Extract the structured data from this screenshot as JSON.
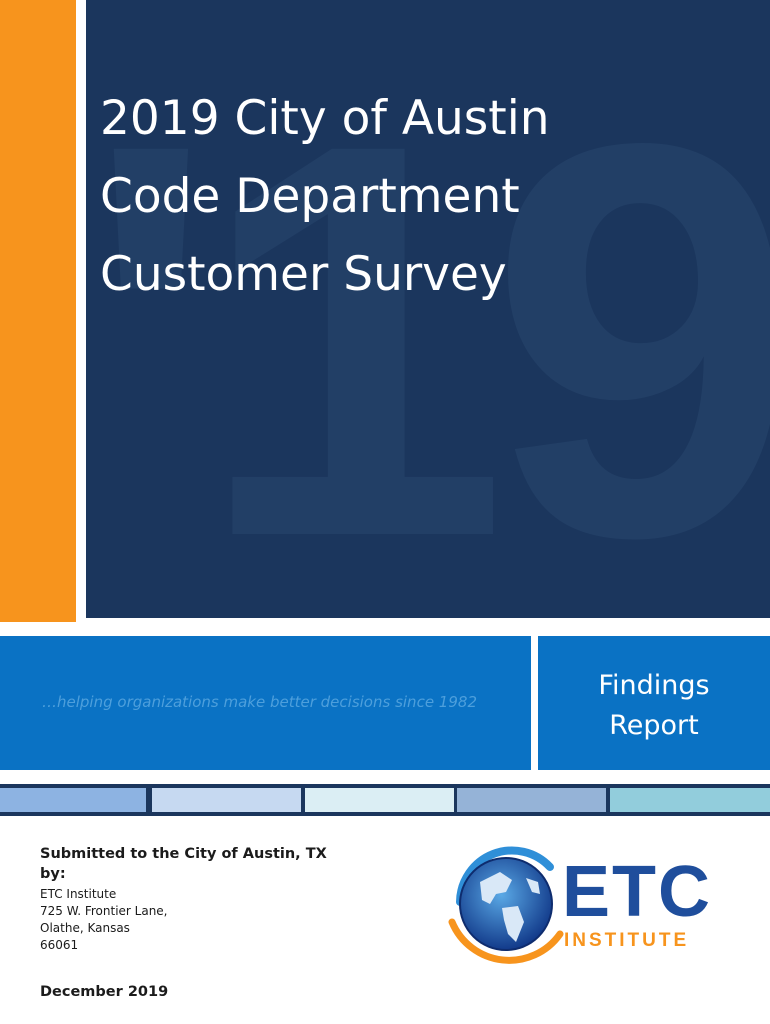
{
  "cover": {
    "title_lines": [
      "2019 City of Austin",
      "Code Department",
      "Customer Survey"
    ],
    "watermark": "'19",
    "tagline": "…helping organizations make better decisions since 1982",
    "report_lines": [
      "Findings",
      "Report"
    ]
  },
  "submission": {
    "heading_line1": "Submitted to the City of Austin, TX",
    "heading_line2": "by:",
    "address": [
      "ETC Institute",
      "725 W. Frontier Lane,",
      "Olathe, Kansas",
      "66061"
    ],
    "date": "December 2019"
  },
  "logo": {
    "name": "ETC",
    "sub": "INSTITUTE",
    "icon": "globe-icon"
  },
  "colors": {
    "orange": "#f7941d",
    "navy": "#1b365d",
    "blue": "#0a72c4",
    "stripe": [
      "#8db3e2",
      "#c6d9f1",
      "#dbeef4",
      "#95b3d7",
      "#92cddc"
    ]
  }
}
